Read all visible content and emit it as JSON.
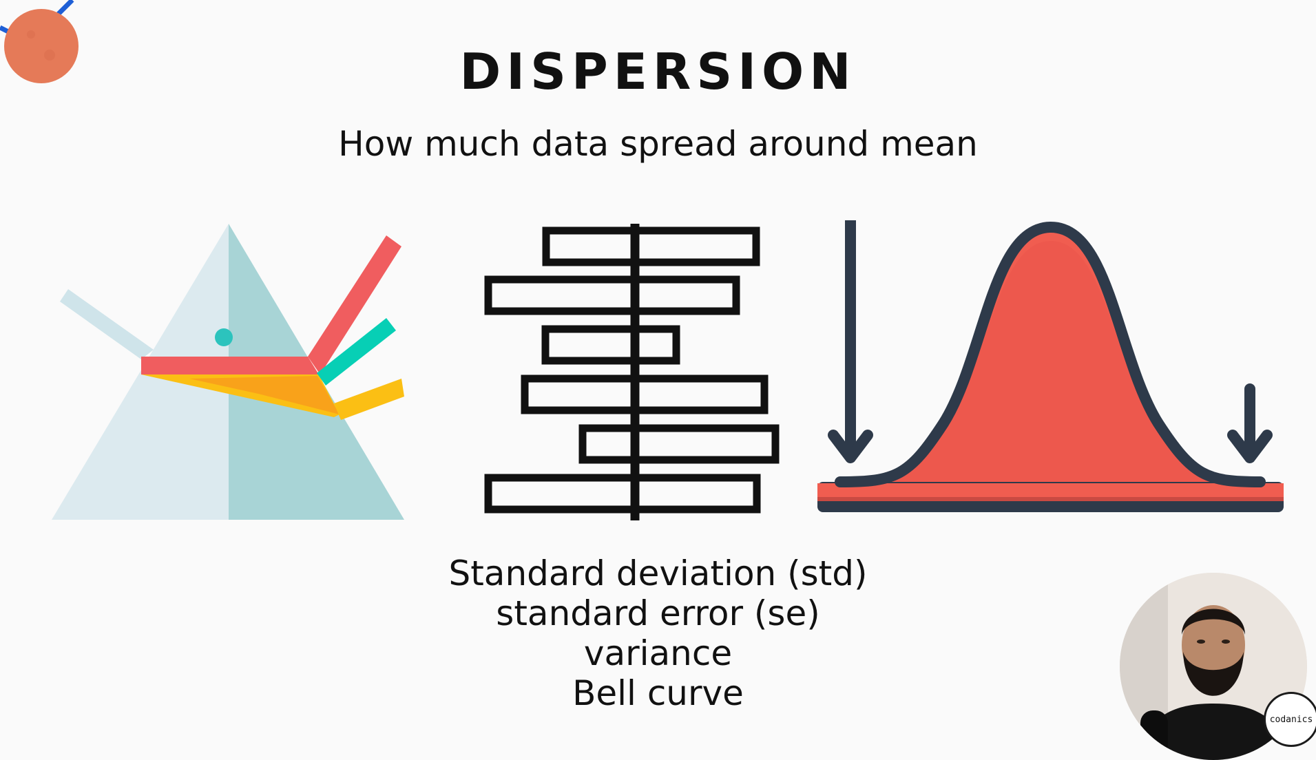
{
  "slide": {
    "title": "DISPERSION",
    "subtitle": "How much data spread around mean",
    "terms": [
      "Standard deviation (std)",
      "standard error (se)",
      "variance",
      "Bell curve"
    ]
  },
  "illustrations": [
    {
      "name": "prism-icon"
    },
    {
      "name": "boxplot-icon"
    },
    {
      "name": "bell-curve-icon"
    }
  ],
  "presenter": {
    "badge_label": "codanics"
  },
  "colors": {
    "coral": "#f05d50",
    "dark": "#2e3a4a",
    "teal": "#2cc3bd",
    "yellow": "#fbbf14",
    "prism_light": "#dceaef",
    "prism_dark": "#a8d4d6"
  }
}
